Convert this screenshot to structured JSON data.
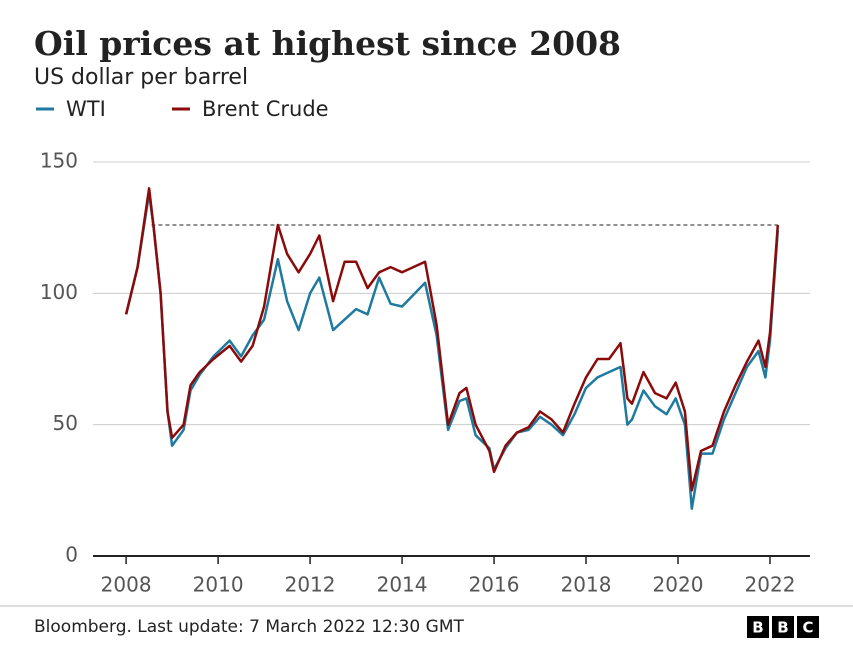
{
  "chart_data": {
    "type": "line",
    "title": "Oil prices at highest since 2008",
    "subtitle": "US dollar per barrel",
    "source": "Bloomberg. Last update: 7 March 2022 12:30 GMT",
    "logo": [
      "B",
      "B",
      "C"
    ],
    "x": [
      2008.0,
      2008.25,
      2008.5,
      2008.6,
      2008.75,
      2008.9,
      2009.0,
      2009.25,
      2009.4,
      2009.6,
      2009.9,
      2010.25,
      2010.5,
      2010.75,
      2011.0,
      2011.3,
      2011.5,
      2011.75,
      2012.0,
      2012.2,
      2012.5,
      2012.75,
      2013.0,
      2013.25,
      2013.5,
      2013.75,
      2014.0,
      2014.5,
      2014.75,
      2015.0,
      2015.25,
      2015.4,
      2015.6,
      2015.9,
      2016.0,
      2016.25,
      2016.5,
      2016.75,
      2017.0,
      2017.25,
      2017.5,
      2017.75,
      2018.0,
      2018.25,
      2018.5,
      2018.75,
      2018.9,
      2019.0,
      2019.25,
      2019.5,
      2019.75,
      2019.95,
      2020.15,
      2020.3,
      2020.5,
      2020.75,
      2021.0,
      2021.25,
      2021.5,
      2021.75,
      2021.9,
      2022.0,
      2022.17
    ],
    "series": [
      {
        "name": "WTI",
        "color": "#1f7aa0",
        "values": [
          92,
          110,
          138,
          125,
          100,
          55,
          42,
          48,
          63,
          69,
          76,
          82,
          76,
          84,
          90,
          113,
          97,
          86,
          100,
          106,
          86,
          90,
          94,
          92,
          106,
          96,
          95,
          104,
          84,
          48,
          59,
          60,
          46,
          41,
          33,
          41,
          47,
          48,
          53,
          50,
          46,
          54,
          64,
          68,
          70,
          72,
          50,
          52,
          63,
          57,
          54,
          60,
          50,
          18,
          39,
          39,
          52,
          62,
          72,
          78,
          68,
          82,
          124
        ]
      },
      {
        "name": "Brent Crude",
        "color": "#8b0a0a",
        "values": [
          92,
          110,
          140,
          125,
          100,
          55,
          45,
          50,
          65,
          70,
          75,
          80,
          74,
          80,
          95,
          126,
          115,
          108,
          115,
          122,
          97,
          112,
          112,
          102,
          108,
          110,
          108,
          112,
          88,
          50,
          62,
          64,
          50,
          40,
          32,
          42,
          47,
          49,
          55,
          52,
          47,
          58,
          68,
          75,
          75,
          81,
          60,
          58,
          70,
          62,
          60,
          66,
          55,
          25,
          40,
          42,
          55,
          65,
          74,
          82,
          72,
          85,
          126
        ]
      }
    ],
    "reference_line": {
      "y": 126,
      "x": [
        2008.55,
        2022.17
      ]
    },
    "xlim": [
      2007.28,
      2022.87
    ],
    "xticks": [
      2008,
      2010,
      2012,
      2014,
      2016,
      2018,
      2020,
      2022
    ],
    "ylim": [
      0,
      150
    ],
    "yticks": [
      0,
      50,
      100,
      150
    ],
    "grid": true
  }
}
